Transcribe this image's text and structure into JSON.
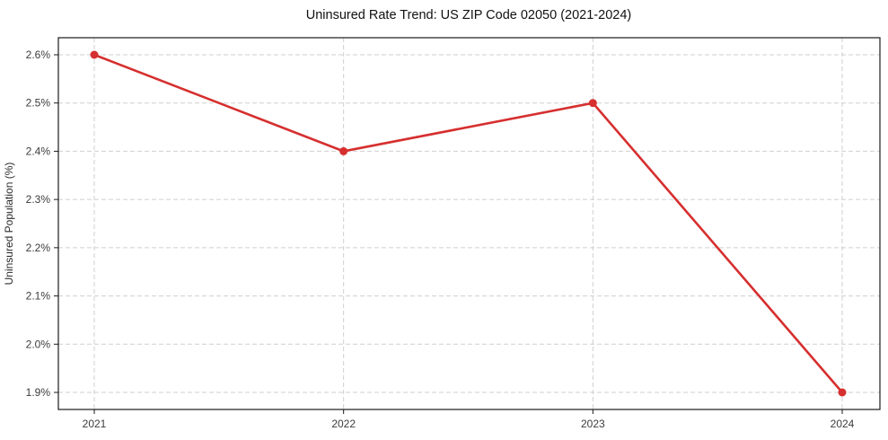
{
  "chart_data": {
    "type": "line",
    "title": "Uninsured Rate Trend: US ZIP Code 02050 (2021-2024)",
    "xlabel": "",
    "ylabel": "Uninsured Population (%)",
    "x": [
      2021,
      2022,
      2023,
      2024
    ],
    "x_tick_labels": [
      "2021",
      "2022",
      "2023",
      "2024"
    ],
    "series": [
      {
        "name": "uninsured-rate",
        "values": [
          2.6,
          2.4,
          2.5,
          1.9
        ]
      }
    ],
    "ylim": [
      1.9,
      2.6
    ],
    "y_ticks": [
      1.9,
      2.0,
      2.1,
      2.2,
      2.3,
      2.4,
      2.5,
      2.6
    ],
    "y_tick_labels": [
      "1.9%",
      "2.0%",
      "2.1%",
      "2.2%",
      "2.3%",
      "2.4%",
      "2.5%",
      "2.6%"
    ],
    "grid": true,
    "grid_style": "dashed",
    "legend_position": "none",
    "line_color": "#d62f2f",
    "marker": "circle",
    "grid_color": "#cfcfcf",
    "spine_color": "#1a1a1a",
    "background_color": "#ffffff"
  }
}
